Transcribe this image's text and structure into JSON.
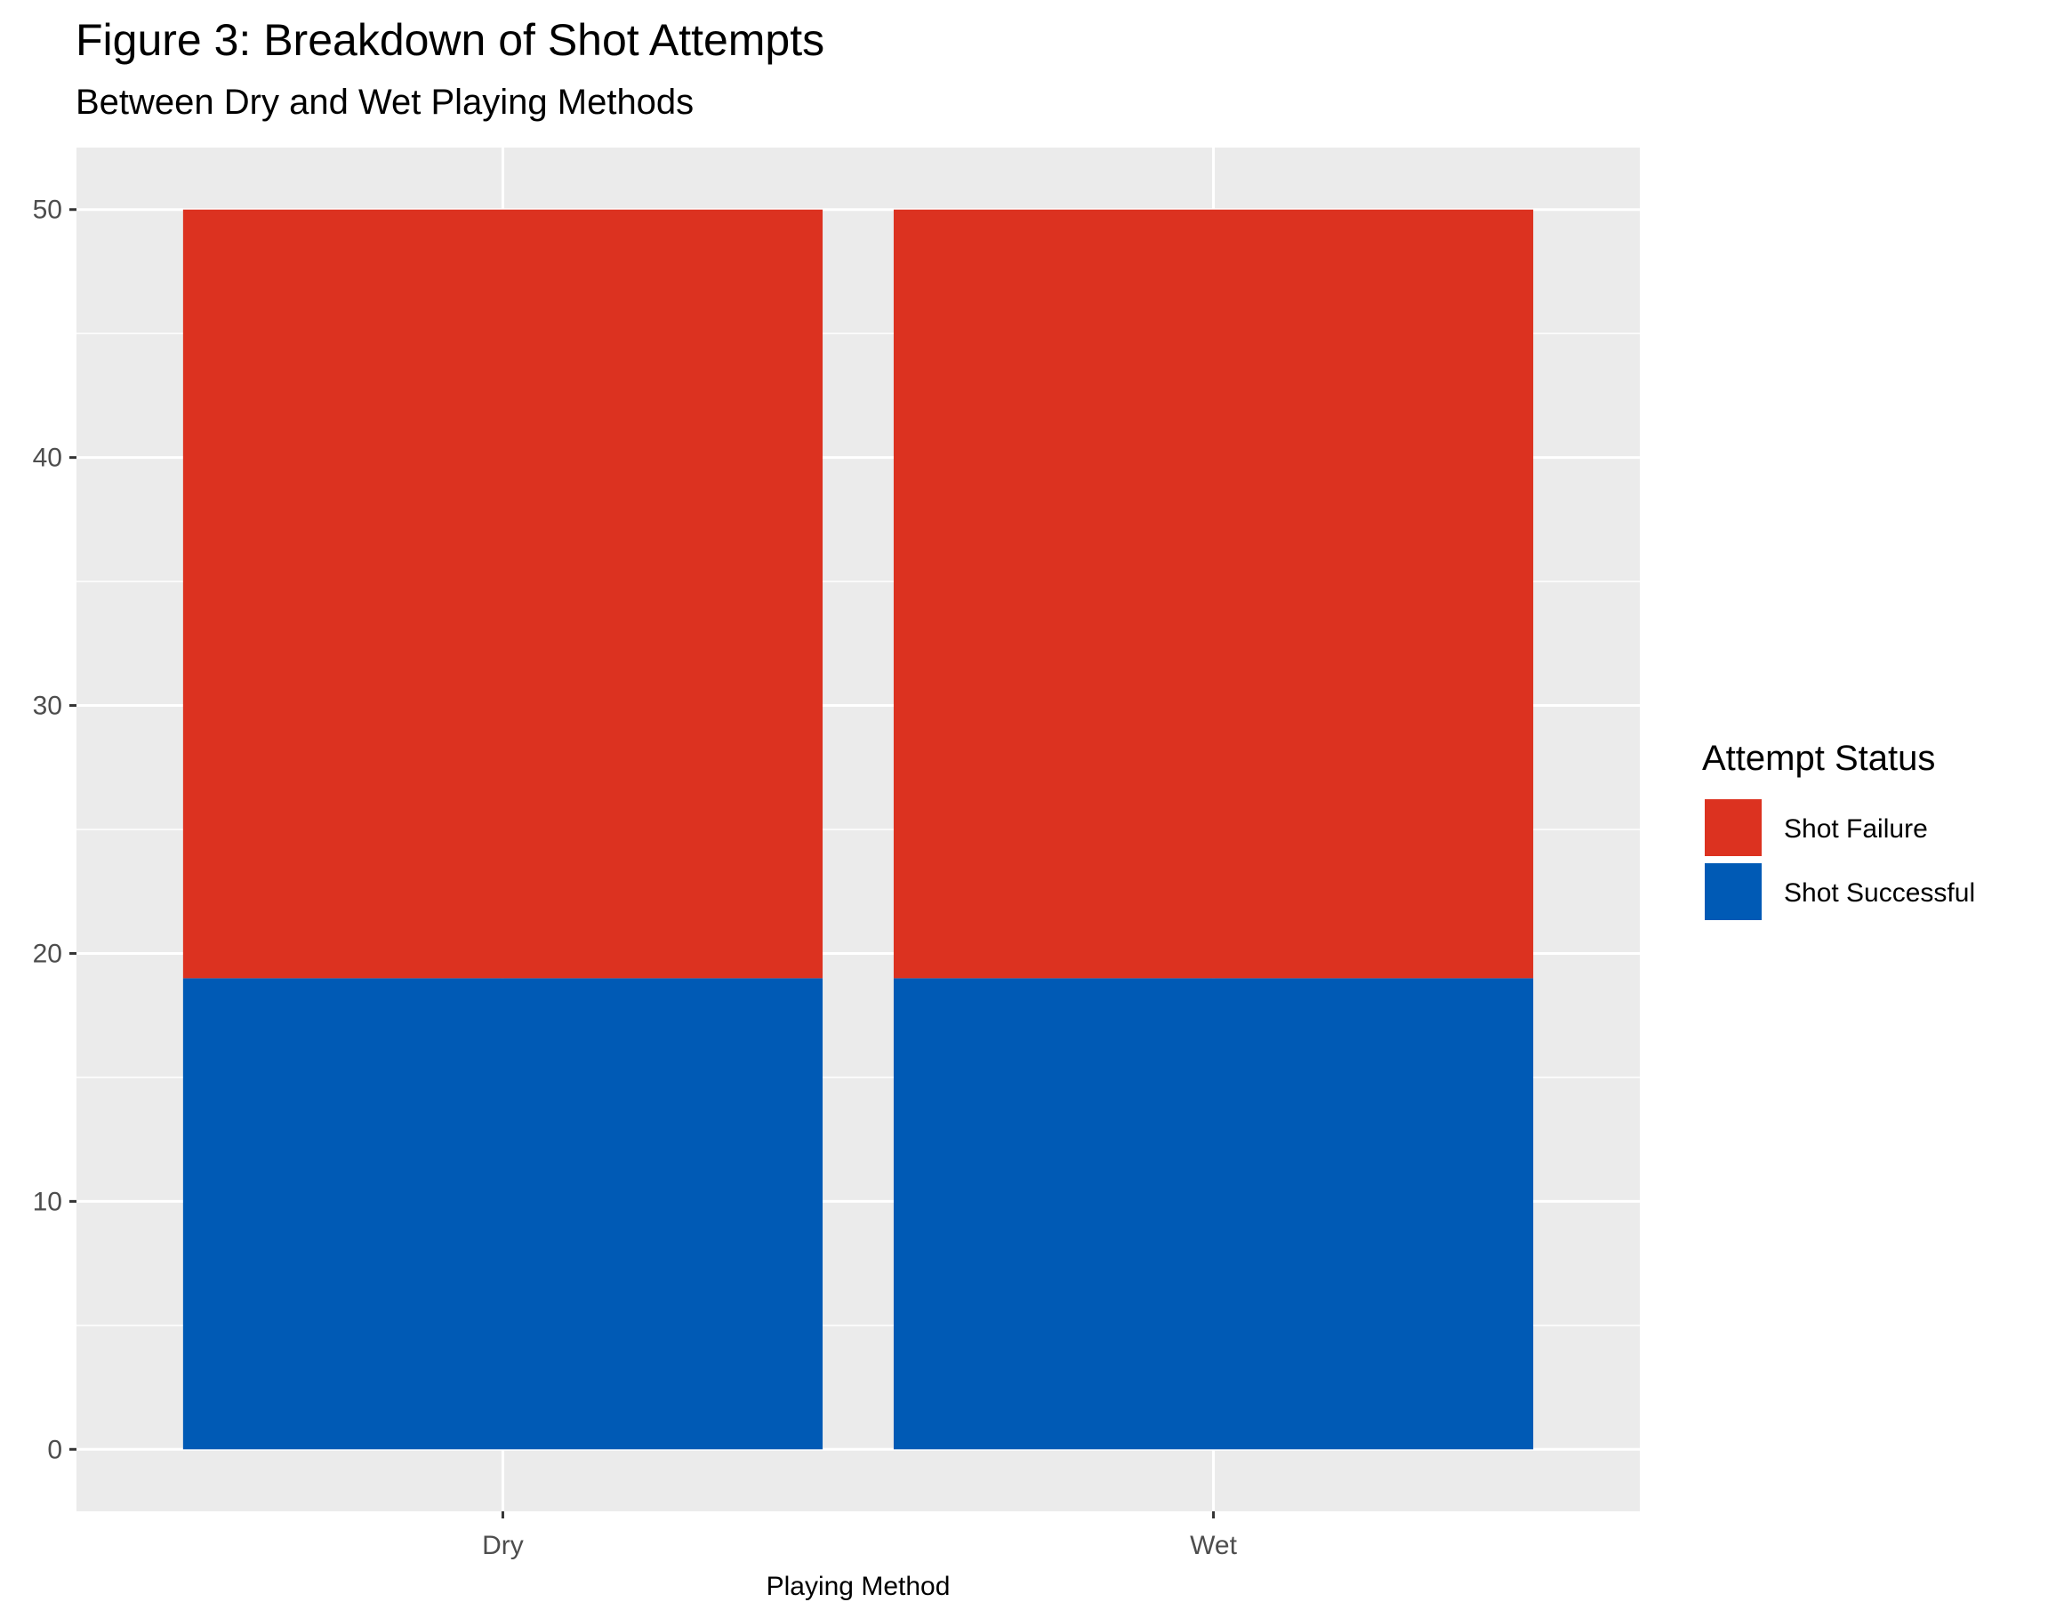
{
  "chart_data": {
    "type": "bar",
    "stacked": true,
    "title": "Figure 3: Breakdown of Shot Attempts",
    "subtitle": "Between Dry and Wet Playing Methods",
    "xlabel": "Playing Method",
    "ylabel": "",
    "categories": [
      "Dry",
      "Wet"
    ],
    "ylim": [
      -2.5,
      52.5
    ],
    "yticks": [
      0,
      10,
      20,
      30,
      40,
      50
    ],
    "grid": true,
    "series": [
      {
        "name": "Shot Successful",
        "color": "#005AB5",
        "values": [
          19,
          19
        ]
      },
      {
        "name": "Shot Failure",
        "color": "#DC3220",
        "values": [
          31,
          31
        ]
      }
    ],
    "legend": {
      "title": "Attempt Status",
      "position": "right",
      "entries": [
        {
          "label": "Shot Failure",
          "color": "#DC3220"
        },
        {
          "label": "Shot Successful",
          "color": "#005AB5"
        }
      ]
    },
    "panel_background": "#EBEBEB",
    "grid_color": "#FFFFFF"
  }
}
